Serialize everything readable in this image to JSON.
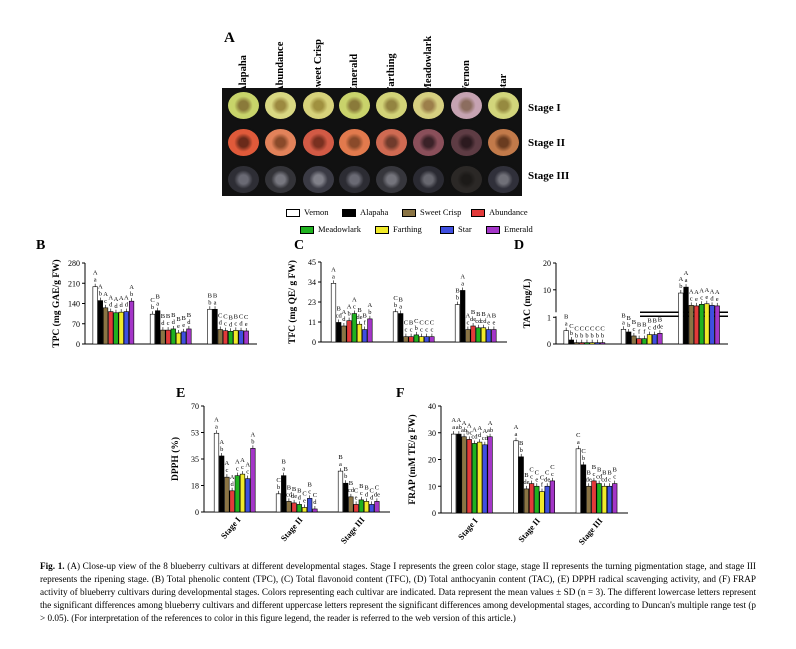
{
  "photo_panel": {
    "letter": "A",
    "cultivars": [
      "Alapaha",
      "Abundance",
      "Sweet Crisp",
      "Emerald",
      "Farthing",
      "Meadowlark",
      "Vernon",
      "Star"
    ],
    "stages": [
      "Stage I",
      "Stage II",
      "Stage III"
    ]
  },
  "legend": {
    "items": [
      {
        "name": "Vernon",
        "color": "#ffffff"
      },
      {
        "name": "Alapaha",
        "color": "#000000"
      },
      {
        "name": "Sweet Crisp",
        "color": "#8a7444"
      },
      {
        "name": "Abundance",
        "color": "#e23a3a"
      },
      {
        "name": "Meadowlark",
        "color": "#1fb21f"
      },
      {
        "name": "Farthing",
        "color": "#f0ea2a"
      },
      {
        "name": "Star",
        "color": "#3f4fe0"
      },
      {
        "name": "Emerald",
        "color": "#a436c8"
      }
    ]
  },
  "chart_data": [
    {
      "panel": "B",
      "type": "bar",
      "ylabel": "TPC (mg GAE/g FW)",
      "yticks": [
        "0",
        "70",
        "140",
        "210",
        "280"
      ],
      "ylim": [
        0,
        280
      ],
      "categories": [
        "Stage I",
        "Stage II",
        "Stage III"
      ],
      "series": [
        {
          "name": "Vernon",
          "values": [
            198,
            103,
            120
          ]
        },
        {
          "name": "Alapaha",
          "values": [
            150,
            115,
            120
          ]
        },
        {
          "name": "Sweet Crisp",
          "values": [
            125,
            48,
            50
          ]
        },
        {
          "name": "Abundance",
          "values": [
            112,
            48,
            46
          ]
        },
        {
          "name": "Meadowlark",
          "values": [
            108,
            52,
            44
          ]
        },
        {
          "name": "Farthing",
          "values": [
            110,
            38,
            47
          ]
        },
        {
          "name": "Star",
          "values": [
            112,
            42,
            46
          ]
        },
        {
          "name": "Emerald",
          "values": [
            148,
            52,
            45
          ]
        }
      ],
      "labels": [
        [
          "A\na",
          "A\nb",
          "A\nc",
          "A\nd",
          "A\nd",
          "A\nd",
          "A\nd",
          "A\nb"
        ],
        [
          "C\nb",
          "B\na",
          "B\nd",
          "B\nc",
          "B\nd",
          "B\ne",
          "B\ne",
          "B\nd"
        ],
        [
          "B\nb",
          "B\na",
          "C\nd",
          "C\nc",
          "B\nd",
          "B\nc",
          "C\nd",
          "C\ne"
        ]
      ]
    },
    {
      "panel": "C",
      "type": "bar",
      "ylabel": "TFC (mg QE/ g FW)",
      "yticks": [
        "0",
        "11",
        "23",
        "34",
        "45"
      ],
      "ylim": [
        0,
        45
      ],
      "categories": [
        "Stage I",
        "Stage II",
        "Stage III"
      ],
      "series": [
        {
          "name": "Vernon",
          "values": [
            33,
            17,
            21
          ]
        },
        {
          "name": "Alapaha",
          "values": [
            11,
            16,
            29
          ]
        },
        {
          "name": "Sweet Crisp",
          "values": [
            9,
            3,
            7
          ]
        },
        {
          "name": "Abundance",
          "values": [
            12,
            3,
            9
          ]
        },
        {
          "name": "Meadowlark",
          "values": [
            16,
            4,
            8
          ]
        },
        {
          "name": "Farthing",
          "values": [
            10,
            3,
            8
          ]
        },
        {
          "name": "Star",
          "values": [
            7,
            3,
            7
          ]
        },
        {
          "name": "Emerald",
          "values": [
            13,
            3,
            7
          ]
        }
      ],
      "labels": [
        [
          "A\na",
          "B\ncd",
          "A\nd",
          "A\nb",
          "A\nc",
          "B\nde",
          "B\nf",
          "A\nb"
        ],
        [
          "C\nb",
          "B\na",
          "C\nc",
          "B\nc",
          "C\nb",
          "C\nc",
          "C\nc",
          "C\nc"
        ],
        [
          "B\nb",
          "A\na",
          "A\nc",
          "B\nde",
          "B\ncd",
          "B\ncd",
          "A\ne",
          "B\ne"
        ]
      ]
    },
    {
      "panel": "D",
      "type": "bar",
      "ylabel": "TAC (mg/L)",
      "yticks": [
        "0",
        "1",
        "10",
        "20"
      ],
      "ylim": [
        0,
        20
      ],
      "broken_axis": true,
      "categories": [
        "Stage I",
        "Stage II",
        "Stage III"
      ],
      "series": [
        {
          "name": "Vernon",
          "values": [
            0.5,
            0.55,
            8.8
          ]
        },
        {
          "name": "Alapaha",
          "values": [
            0.15,
            0.45,
            11
          ]
        },
        {
          "name": "Sweet Crisp",
          "values": [
            0.05,
            0.3,
            4.2
          ]
        },
        {
          "name": "Abundance",
          "values": [
            0.05,
            0.2,
            4
          ]
        },
        {
          "name": "Meadowlark",
          "values": [
            0.05,
            0.2,
            4.6
          ]
        },
        {
          "name": "Farthing",
          "values": [
            0.05,
            0.35,
            4.8
          ]
        },
        {
          "name": "Star",
          "values": [
            0.05,
            0.35,
            4.2
          ]
        },
        {
          "name": "Emerald",
          "values": [
            0.05,
            0.4,
            4
          ]
        }
      ],
      "labels": [
        [
          "B\na",
          "C\nb",
          "C\nb",
          "C\nb",
          "C\nb",
          "C\nb",
          "C\nb",
          "C\nb"
        ],
        [
          "B\na",
          "B\nb",
          "B\nc",
          "B\nf",
          "B\nf",
          "B\nc",
          "B\nd",
          "B\nde"
        ],
        [
          "A\nb",
          "A\na",
          "A\nc",
          "A\ne",
          "A\nc",
          "A\ne",
          "A\nd",
          "A\ne"
        ]
      ]
    },
    {
      "panel": "E",
      "type": "bar",
      "ylabel": "DPPH (%)",
      "yticks": [
        "0",
        "18",
        "35",
        "53",
        "70"
      ],
      "ylim": [
        0,
        70
      ],
      "categories": [
        "Stage I",
        "Stage II",
        "Stage III"
      ],
      "series": [
        {
          "name": "Vernon",
          "values": [
            52,
            12,
            27
          ]
        },
        {
          "name": "Alapaha",
          "values": [
            37,
            24,
            19
          ]
        },
        {
          "name": "Sweet Crisp",
          "values": [
            23,
            7,
            10
          ]
        },
        {
          "name": "Abundance",
          "values": [
            14,
            6,
            5
          ]
        },
        {
          "name": "Meadowlark",
          "values": [
            24,
            5,
            8
          ]
        },
        {
          "name": "Farthing",
          "values": [
            25,
            3,
            7
          ]
        },
        {
          "name": "Star",
          "values": [
            22,
            9,
            5
          ]
        },
        {
          "name": "Emerald",
          "values": [
            42,
            2,
            7
          ]
        }
      ],
      "labels": [
        [
          "A\na",
          "A\nb",
          "A\nc",
          "A\nd",
          "A\nc",
          "A\nc",
          "A\nc",
          "A\nb"
        ],
        [
          "C\nb",
          "B\na",
          "B\ncd",
          "B\nde",
          "B\nd",
          "C\ne",
          "B\nc",
          "C\nd"
        ],
        [
          "B\na",
          "B\nb",
          "B\ncd",
          "C\ne",
          "B\nc",
          "B\nd",
          "C\nd",
          "C\nde"
        ]
      ]
    },
    {
      "panel": "F",
      "type": "bar",
      "ylabel": "FRAP (mM TE/g FW)",
      "yticks": [
        "0",
        "10",
        "20",
        "30",
        "40"
      ],
      "ylim": [
        0,
        40
      ],
      "categories": [
        "Stage I",
        "Stage II",
        "Stage III"
      ],
      "series": [
        {
          "name": "Vernon",
          "values": [
            29.5,
            27,
            24
          ]
        },
        {
          "name": "Alapaha",
          "values": [
            29.5,
            21,
            18
          ]
        },
        {
          "name": "Sweet Crisp",
          "values": [
            28.5,
            9,
            10
          ]
        },
        {
          "name": "Abundance",
          "values": [
            27.5,
            11,
            12
          ]
        },
        {
          "name": "Meadowlark",
          "values": [
            26,
            10,
            11
          ]
        },
        {
          "name": "Farthing",
          "values": [
            26.5,
            8,
            10
          ]
        },
        {
          "name": "Star",
          "values": [
            25.5,
            10,
            10
          ]
        },
        {
          "name": "Emerald",
          "values": [
            28.5,
            12,
            11
          ]
        }
      ],
      "labels": [
        [
          "A\na",
          "A\nab",
          "A\nab",
          "A\nbc",
          "A\ncd",
          "A\nd",
          "A\ncd",
          "A\nab"
        ],
        [
          "A\na",
          "B\nb",
          "B\nde",
          "C\nc",
          "C\ne",
          "C\nf",
          "C\nde",
          "C\nc"
        ],
        [
          "C\na",
          "C\nb",
          "B\nde",
          "B\nc",
          "B\ncd",
          "B\ncd",
          "B\nc",
          "B\nc"
        ]
      ]
    }
  ],
  "caption": {
    "bold_lead": "Fig. 1.",
    "text": " (A) Close-up view of the 8 blueberry cultivars at different developmental stages. Stage I represents the green color stage, stage II represents the turning pigmentation stage, and stage III represents the ripening stage. (B) Total phenolic content (TPC), (C) Total flavonoid content (TFC), (D) Total anthocyanin content (TAC), (E) DPPH radical scavenging activity, and (F) FRAP activity of blueberry cultivars during developmental stages. Colors representing each cultivar are indicated. Data represent the mean values ± SD (n = 3). The different lowercase letters represent the significant differences among blueberry cultivars and different uppercase letters represent the significant differences among developmental stages, according to Duncan's multiple range test (p > 0.05). (For interpretation of the references to color in this figure legend, the reader is referred to the web version of this article.)"
  }
}
